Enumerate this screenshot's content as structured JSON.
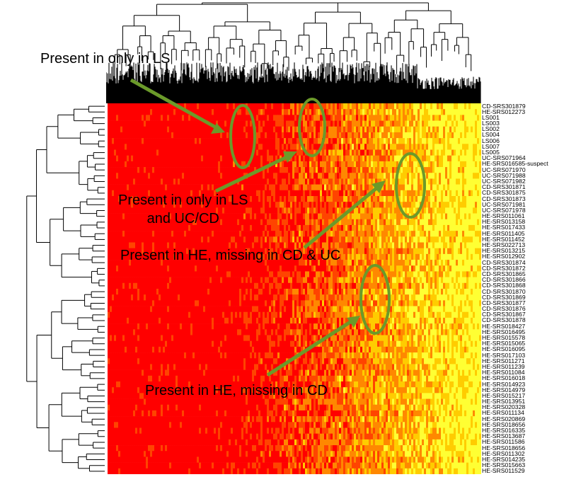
{
  "chart_data": {
    "type": "heatmap",
    "title": "",
    "xlabel": "",
    "ylabel": "",
    "colormap": [
      "#ff0000",
      "#ff4400",
      "#ff8800",
      "#ffcc00",
      "#ffff33"
    ],
    "row_labels": [
      "CD-SRS301879",
      "HE-SRS012273",
      "LS001",
      "LS003",
      "LS002",
      "LS004",
      "LS006",
      "LS007",
      "LS005",
      "UC-SRS071964",
      "HE-SRS016585-suspect",
      "UC-SRS071970",
      "UC-SRS071988",
      "UC-SRS071982",
      "CD-SRS301871",
      "CD-SRS301875",
      "CD-SRS301873",
      "UC-SRS071981",
      "UC-SRS071978",
      "HE-SRS011061",
      "HE-SRS013158",
      "HE-SRS017433",
      "HE-SRS011405",
      "HE-SRS011452",
      "HE-SRS022713",
      "HE-SRS013215",
      "HE-SRS012902",
      "CD-SRS301874",
      "CD-SRS301872",
      "CD-SRS301865",
      "CD-SRS301866",
      "CD-SRS301868",
      "CD-SRS301870",
      "CD-SRS301869",
      "CD-SRS301877",
      "CD-SRS301876",
      "CD-SRS301867",
      "CD-SRS301878",
      "HE-SRS018427",
      "HE-SRS016495",
      "HE-SRS015578",
      "HE-SRS015065",
      "HE-SRS016095",
      "HE-SRS017103",
      "HE-SRS011271",
      "HE-SRS011239",
      "HE-SRS011084",
      "HE-SRS016018",
      "HE-SRS014923",
      "HE-SRS014979",
      "HE-SRS015217",
      "HE-SRS013951",
      "HE-SRS020328",
      "HE-SRS011134",
      "HE-SRS020869",
      "HE-SRS018656",
      "HE-SRS016335",
      "HE-SRS013687",
      "HE-SRS011586",
      "HE-SRS018656",
      "HE-SRS011302",
      "HE-SRS014235",
      "HE-SRS015663",
      "HE-SRS011529"
    ],
    "gradient_breakpoints": [
      0.5,
      0.62,
      0.78,
      0.9
    ],
    "annotations": [
      "Present in only in LS",
      "Present in only in LS\nand UC/CD",
      "Present in HE, missing in CD & UC",
      "Present in HE, missing in CD"
    ]
  },
  "colors": {
    "annotation_green": "#6b9a2a",
    "dendrogram": "#000000"
  }
}
